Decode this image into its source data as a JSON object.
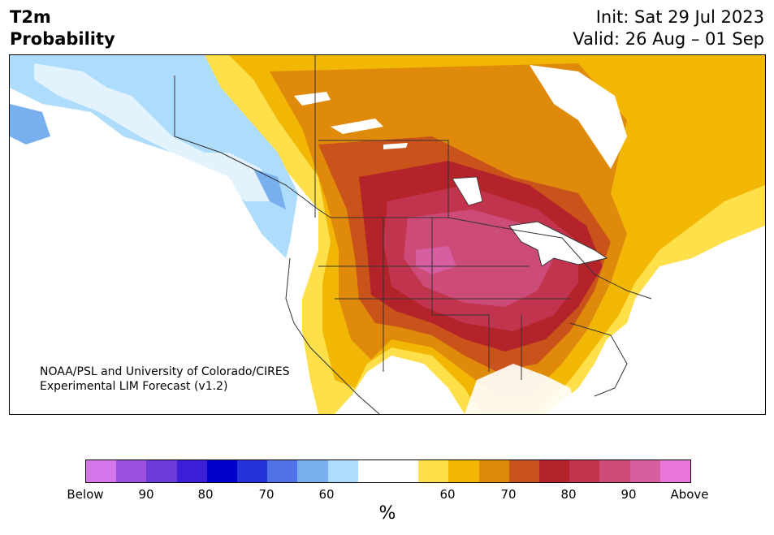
{
  "title": {
    "line1": "T2m",
    "line2": "Probability"
  },
  "subtitle": {
    "init": "Init: Sat 29 Jul 2023",
    "valid": "Valid: 26 Aug – 01 Sep"
  },
  "credit": {
    "line1": "NOAA/PSL and University of Colorado/CIRES",
    "line2": "Experimental LIM Forecast (v1.2)"
  },
  "colorbar": {
    "unit": "%",
    "colors": [
      "#d475ea",
      "#9b50e0",
      "#6a3bd9",
      "#3a1fd6",
      "#0000cc",
      "#2434d8",
      "#4f73e6",
      "#77afef",
      "#addcfc",
      "#ffffff",
      "#ffffff",
      "#ffdf4a",
      "#f2b705",
      "#e08a0c",
      "#c9531a",
      "#b5232a",
      "#c2344e",
      "#cc4b78",
      "#d85ea2",
      "#e875d8"
    ],
    "tick_labels": [
      "Below",
      "90",
      "80",
      "70",
      "60",
      "60",
      "70",
      "80",
      "90",
      "Above"
    ]
  }
}
